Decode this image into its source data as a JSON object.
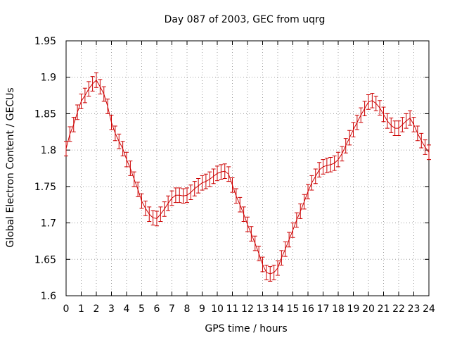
{
  "chart_data": {
    "type": "line",
    "title": "Day 087 of 2003, GEC from uqrg",
    "xlabel": "GPS time / hours",
    "ylabel": "Global Electron Content / GECUs",
    "xlim": [
      0,
      24
    ],
    "ylim": [
      1.6,
      1.95
    ],
    "grid": true,
    "xticks": [
      "0",
      "1",
      "2",
      "3",
      "4",
      "5",
      "6",
      "7",
      "8",
      "9",
      "10",
      "11",
      "12",
      "13",
      "14",
      "15",
      "16",
      "17",
      "18",
      "19",
      "20",
      "21",
      "22",
      "23",
      "24"
    ],
    "yticks": [
      "1.6",
      "1.65",
      "1.7",
      "1.75",
      "1.8",
      "1.85",
      "1.9",
      "1.95"
    ],
    "series_color": "#cc0000",
    "error": 0.01,
    "x": [
      0,
      0.25,
      0.5,
      0.75,
      1,
      1.25,
      1.5,
      1.75,
      2,
      2.25,
      2.5,
      2.75,
      3,
      3.25,
      3.5,
      3.75,
      4,
      4.25,
      4.5,
      4.75,
      5,
      5.25,
      5.5,
      5.75,
      6,
      6.25,
      6.5,
      6.75,
      7,
      7.25,
      7.5,
      7.75,
      8,
      8.25,
      8.5,
      8.75,
      9,
      9.25,
      9.5,
      9.75,
      10,
      10.25,
      10.5,
      10.75,
      11,
      11.25,
      11.5,
      11.75,
      12,
      12.25,
      12.5,
      12.75,
      13,
      13.25,
      13.5,
      13.75,
      14,
      14.25,
      14.5,
      14.75,
      15,
      15.25,
      15.5,
      15.75,
      16,
      16.25,
      16.5,
      16.75,
      17,
      17.25,
      17.5,
      17.75,
      18,
      18.25,
      18.5,
      18.75,
      19,
      19.25,
      19.5,
      19.75,
      20,
      20.25,
      20.5,
      20.75,
      21,
      21.25,
      21.5,
      21.75,
      22,
      22.25,
      22.5,
      22.75,
      23,
      23.25,
      23.5,
      23.75,
      24
    ],
    "y": [
      1.802,
      1.822,
      1.835,
      1.852,
      1.867,
      1.875,
      1.884,
      1.891,
      1.896,
      1.887,
      1.877,
      1.86,
      1.838,
      1.823,
      1.812,
      1.802,
      1.787,
      1.775,
      1.76,
      1.746,
      1.73,
      1.72,
      1.712,
      1.707,
      1.706,
      1.712,
      1.719,
      1.727,
      1.734,
      1.738,
      1.738,
      1.737,
      1.738,
      1.742,
      1.747,
      1.751,
      1.755,
      1.757,
      1.76,
      1.764,
      1.768,
      1.77,
      1.771,
      1.767,
      1.752,
      1.737,
      1.725,
      1.712,
      1.698,
      1.685,
      1.672,
      1.658,
      1.643,
      1.632,
      1.63,
      1.632,
      1.638,
      1.652,
      1.664,
      1.677,
      1.69,
      1.704,
      1.716,
      1.729,
      1.743,
      1.755,
      1.764,
      1.773,
      1.777,
      1.779,
      1.78,
      1.782,
      1.787,
      1.795,
      1.806,
      1.817,
      1.828,
      1.838,
      1.848,
      1.857,
      1.866,
      1.868,
      1.864,
      1.858,
      1.849,
      1.84,
      1.834,
      1.83,
      1.83,
      1.835,
      1.84,
      1.844,
      1.835,
      1.823,
      1.813,
      1.804,
      1.797
    ]
  }
}
